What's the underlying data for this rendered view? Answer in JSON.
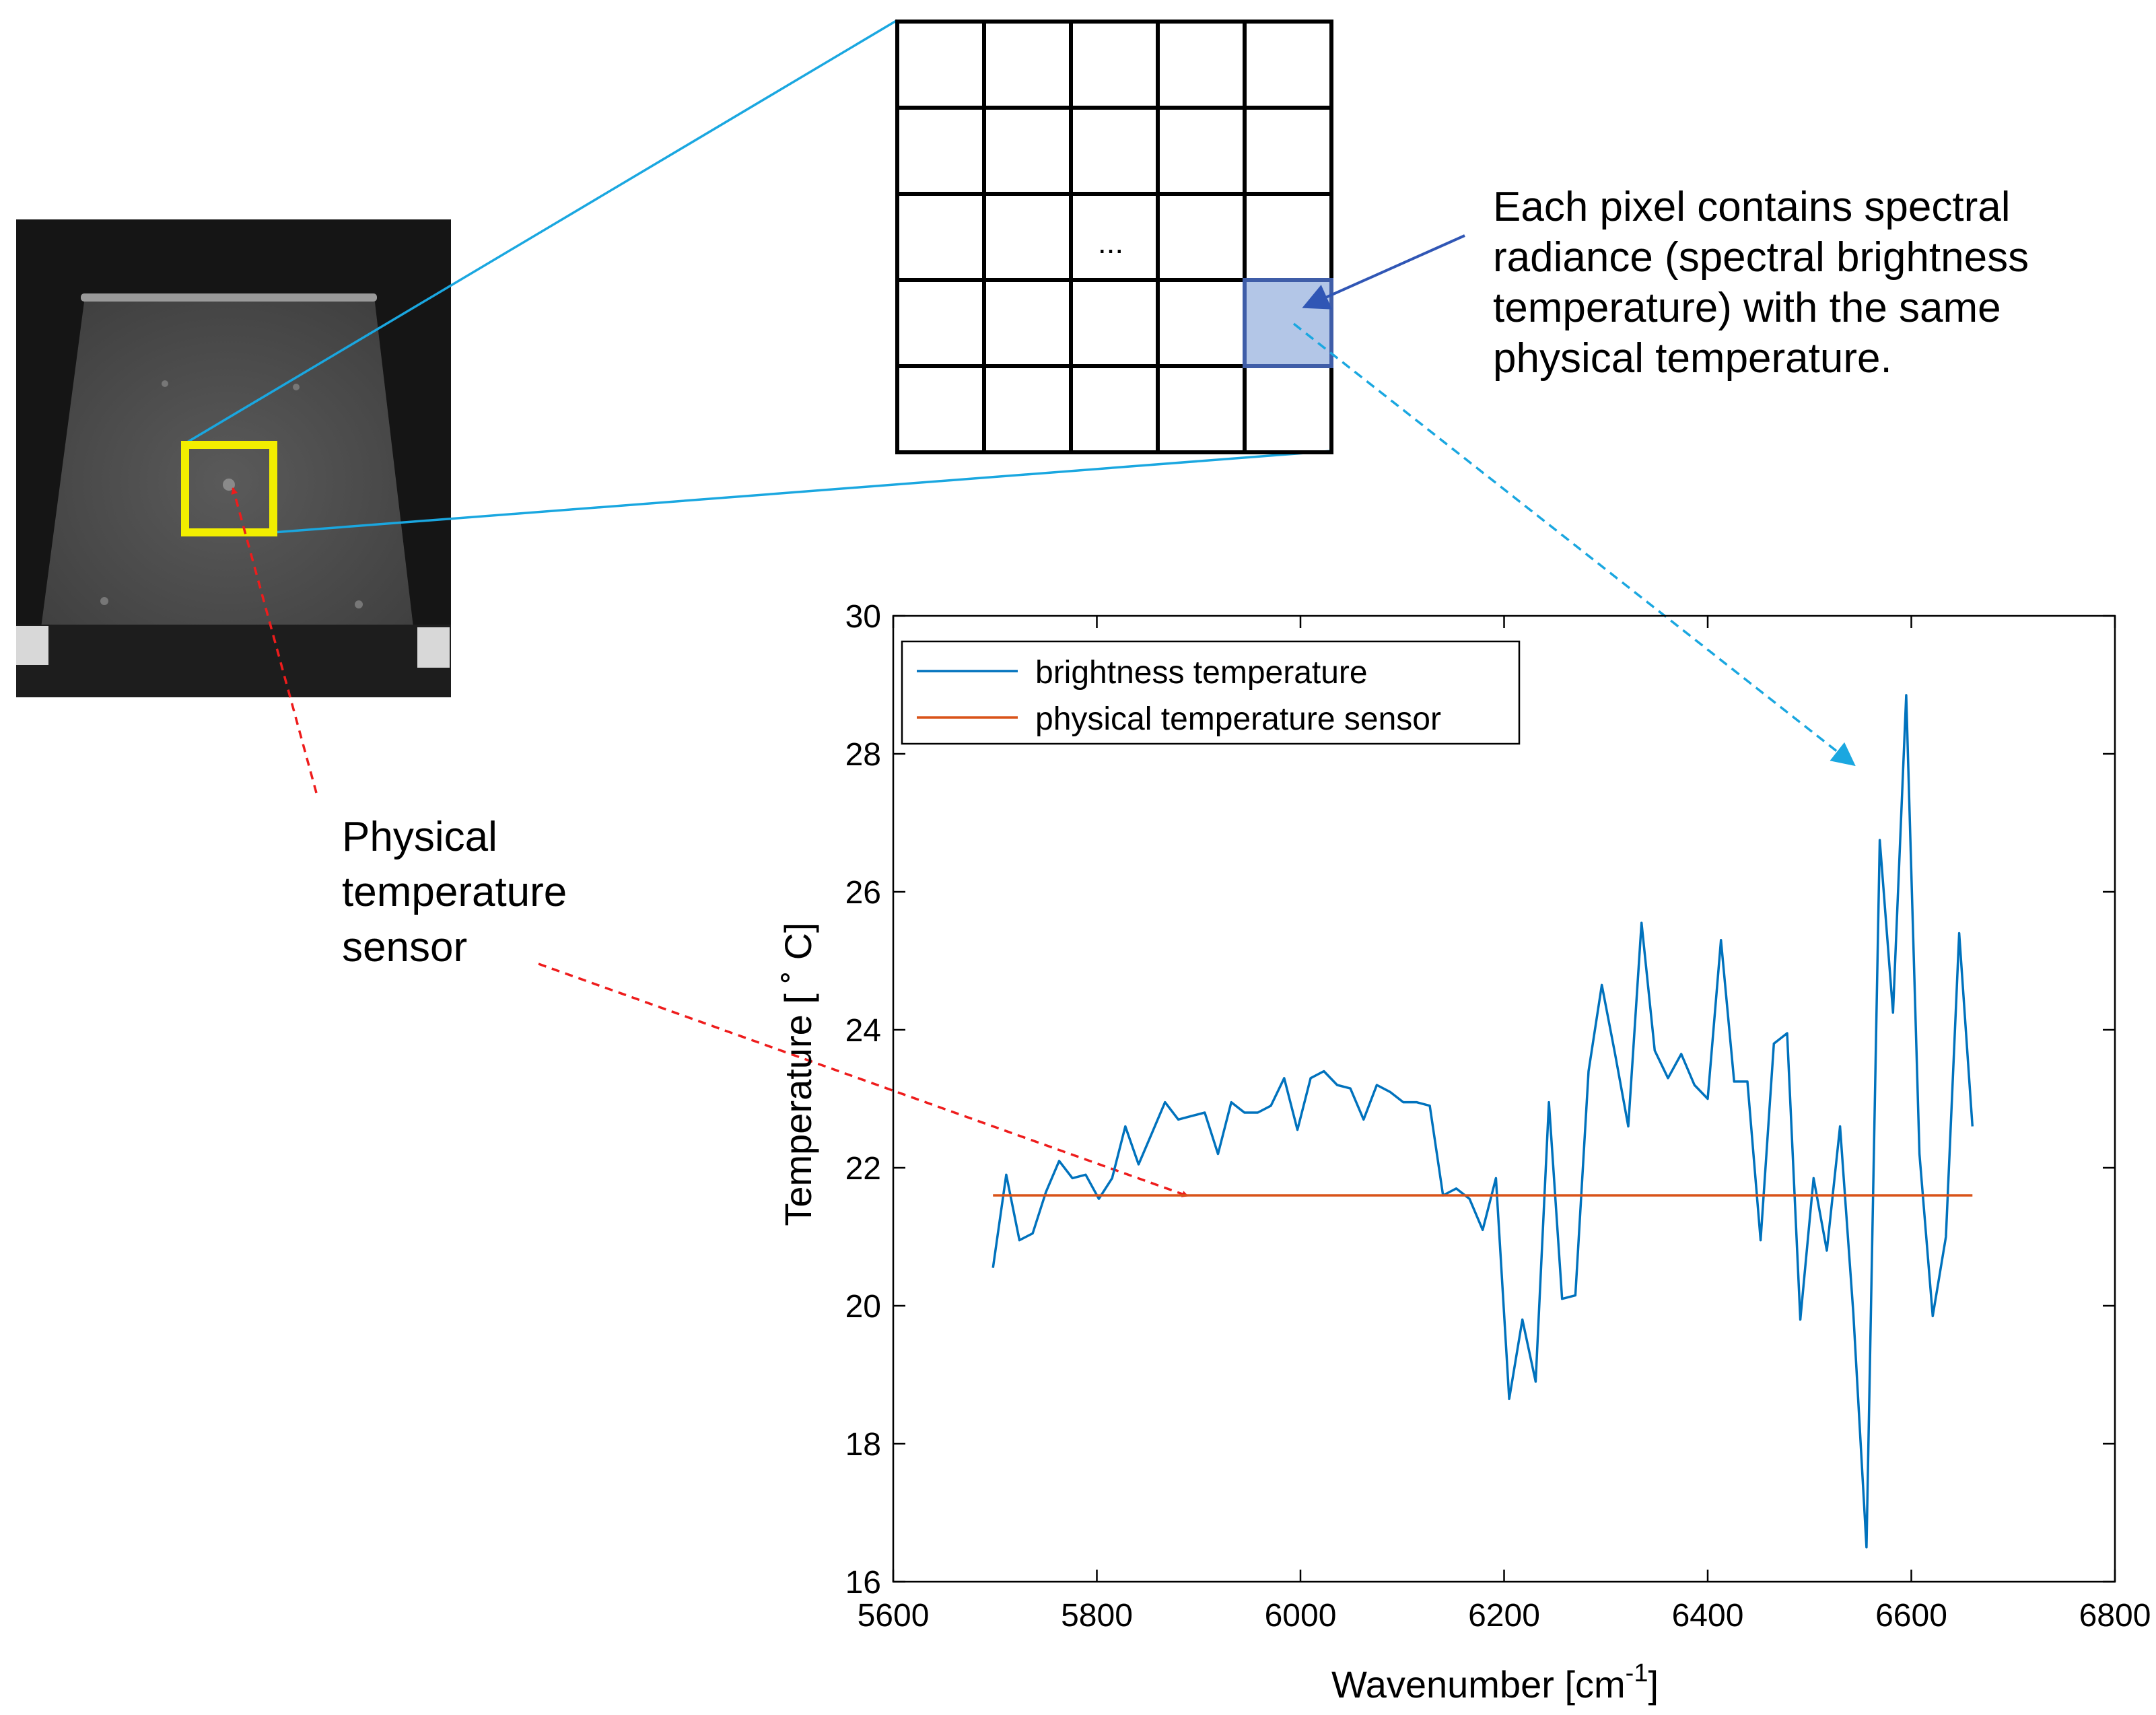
{
  "figure": {
    "grid_ellipsis": "...",
    "pixel_note": [
      "Each pixel contains spectral",
      "radiance (spectral brightness",
      "temperature) with the same",
      "physical temperature."
    ],
    "sensor_note": [
      "Physical",
      "temperature",
      "sensor"
    ],
    "colors": {
      "zoom_lines": "#1aa7e0",
      "highlight_box": "#f2ee00",
      "pixel_fill": "#b3c6e7",
      "pixel_border": "#3f5da8",
      "note_arrow": "#3056b5",
      "spectrum_arrow": "#1aa7e0",
      "sensor_arrow": "#ee1c1c",
      "brightness_line": "#0072bd",
      "physical_line": "#d95319"
    }
  },
  "chart_data": {
    "type": "line",
    "title": "",
    "xlabel": "Wavenumber [cm",
    "xlabel_sup": "-1",
    "xlabel_end": "]",
    "ylabel": "Temperature [ ˚ C]",
    "xlim": [
      5600,
      6800
    ],
    "ylim": [
      16,
      30
    ],
    "xticks": [
      5600,
      5800,
      6000,
      6200,
      6400,
      6600,
      6800
    ],
    "yticks": [
      16,
      18,
      20,
      22,
      24,
      26,
      28,
      30
    ],
    "grid": false,
    "legend_position": "top-left",
    "series": [
      {
        "name": "brightness temperature",
        "color": "#0072bd",
        "x": [
          5698,
          5711,
          5724,
          5737,
          5750,
          5763,
          5776,
          5789,
          5802,
          5815,
          5828,
          5841,
          5854,
          5867,
          5880,
          5893,
          5906,
          5919,
          5932,
          5945,
          5958,
          5971,
          5984,
          5997,
          6010,
          6023,
          6036,
          6049,
          6062,
          6075,
          6088,
          6101,
          6114,
          6127,
          6140,
          6153,
          6166,
          6179,
          6192,
          6205,
          6218,
          6231,
          6244,
          6257,
          6270,
          6283,
          6296,
          6309,
          6322,
          6335,
          6348,
          6361,
          6374,
          6387,
          6400,
          6413,
          6426,
          6439,
          6452,
          6465,
          6478,
          6491,
          6504,
          6517,
          6530,
          6543,
          6556,
          6569,
          6582,
          6595,
          6608,
          6621,
          6634,
          6647,
          6660
        ],
        "y": [
          20.55,
          21.9,
          20.95,
          21.05,
          21.65,
          22.1,
          21.85,
          21.9,
          21.55,
          21.85,
          22.6,
          22.05,
          22.5,
          22.95,
          22.7,
          22.75,
          22.8,
          22.2,
          22.95,
          22.8,
          22.8,
          22.9,
          23.3,
          22.55,
          23.3,
          23.4,
          23.2,
          23.15,
          22.7,
          23.2,
          23.1,
          22.95,
          22.95,
          22.9,
          21.6,
          21.7,
          21.55,
          21.1,
          21.85,
          18.65,
          19.8,
          18.9,
          22.95,
          20.1,
          20.15,
          23.4,
          24.65,
          23.65,
          22.6,
          25.55,
          23.7,
          23.3,
          23.65,
          23.2,
          23.0,
          25.3,
          23.25,
          23.25,
          20.95,
          23.8,
          23.95,
          19.8,
          21.85,
          20.8,
          22.6,
          19.9,
          16.5,
          26.75,
          24.25,
          28.85,
          22.2,
          19.85,
          21.0,
          25.4,
          22.6
        ]
      },
      {
        "name": "physical temperature sensor",
        "color": "#d95319",
        "x": [
          5698,
          6660
        ],
        "y": [
          21.6,
          21.6
        ]
      }
    ]
  }
}
